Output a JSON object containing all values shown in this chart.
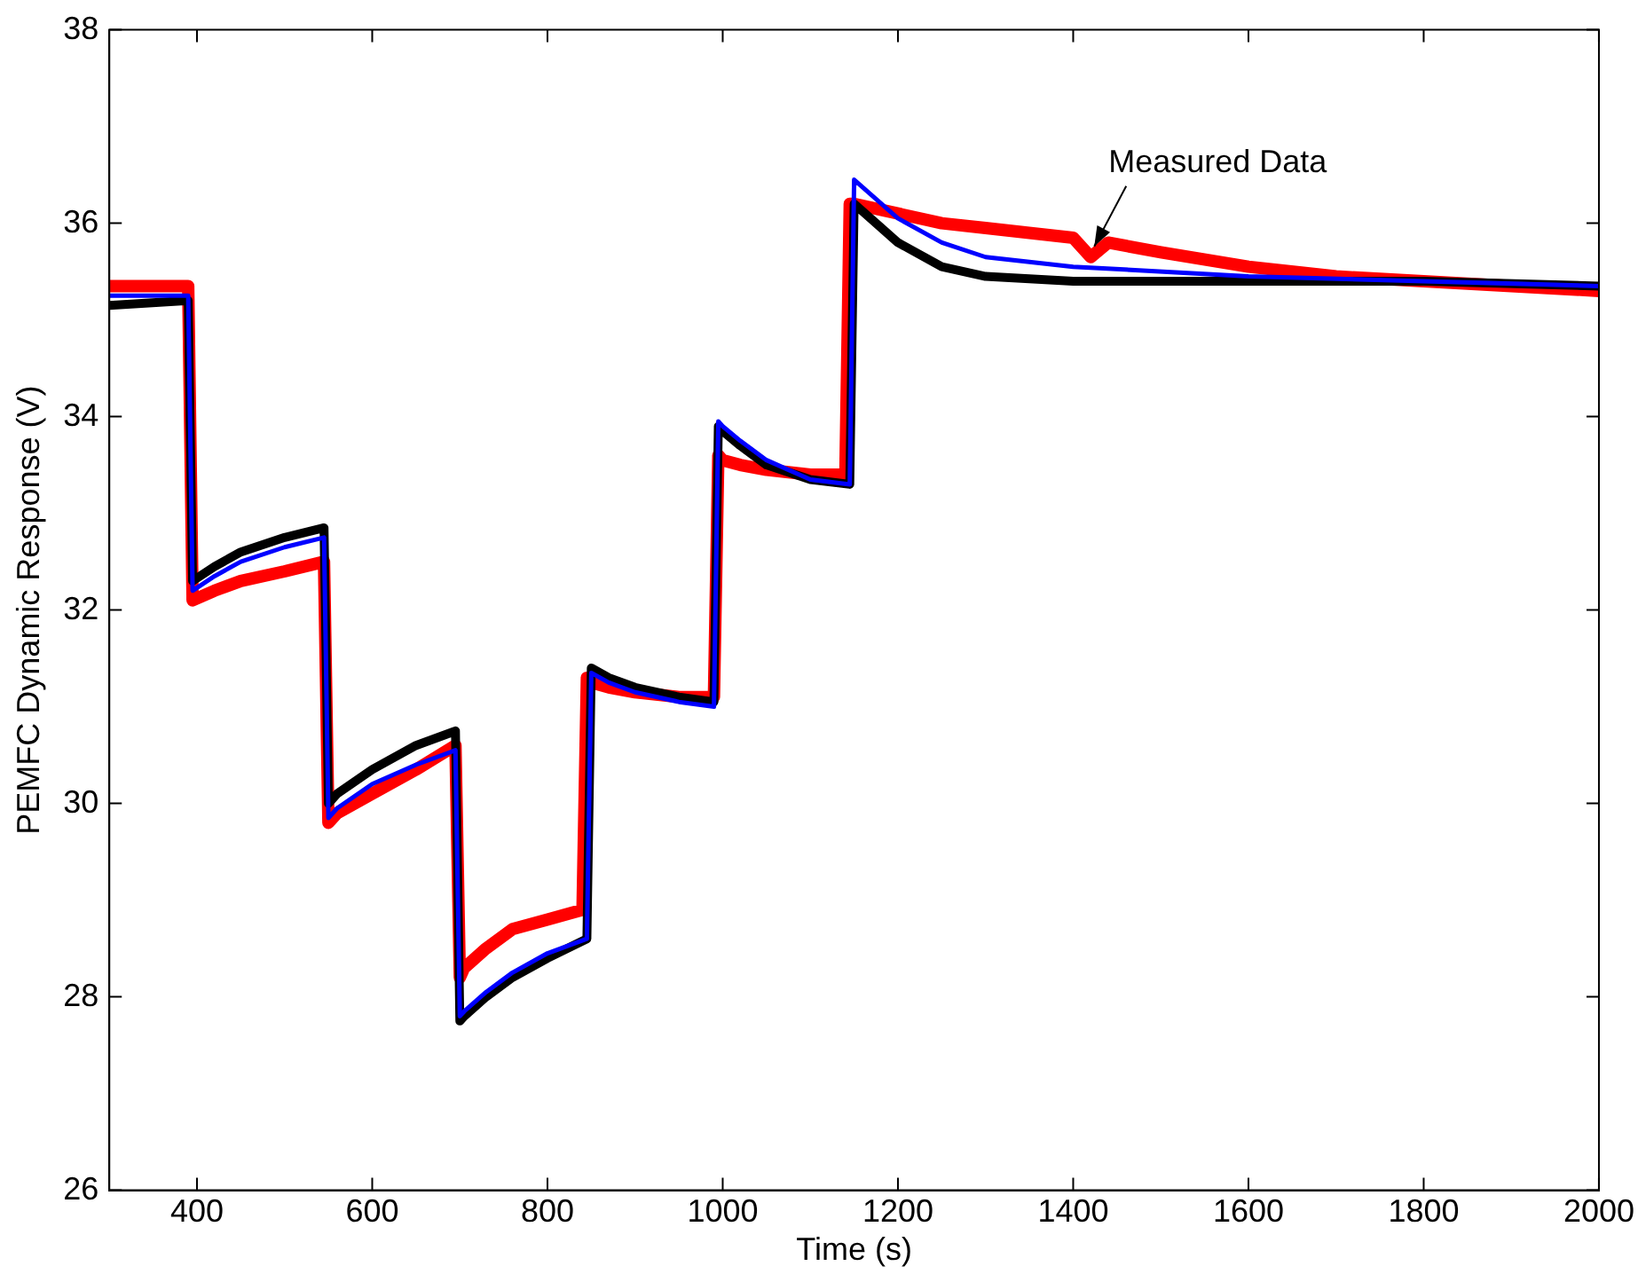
{
  "chart_data": {
    "type": "line",
    "xlabel": "Time (s)",
    "ylabel": "PEMFC Dynamic Response (V)",
    "xlim": [
      300,
      2000
    ],
    "xticks": [
      400,
      600,
      800,
      1000,
      1200,
      1400,
      1600,
      1800,
      2000
    ],
    "ylim": [
      26,
      38
    ],
    "yticks": [
      26,
      28,
      30,
      32,
      34,
      36,
      38
    ],
    "grid": false,
    "legend": false,
    "marker": "none",
    "line_style": "solid",
    "series": [
      {
        "name": "Measured Data",
        "color": "#ff0000",
        "x": [
          300,
          390,
          395,
          420,
          450,
          500,
          545,
          550,
          560,
          600,
          650,
          695,
          700,
          705,
          730,
          760,
          800,
          840,
          845,
          850,
          870,
          900,
          950,
          990,
          995,
          1000,
          1020,
          1050,
          1100,
          1140,
          1145,
          1150,
          1200,
          1250,
          1300,
          1400,
          1420,
          1440,
          1500,
          1600,
          1700,
          1800,
          1900,
          2000
        ],
        "values": [
          35.35,
          35.35,
          32.1,
          32.2,
          32.3,
          32.4,
          32.5,
          29.8,
          29.9,
          30.1,
          30.35,
          30.6,
          28.2,
          28.3,
          28.5,
          28.7,
          28.8,
          28.9,
          31.3,
          31.25,
          31.2,
          31.15,
          31.1,
          31.1,
          33.6,
          33.55,
          33.5,
          33.45,
          33.4,
          33.4,
          36.2,
          36.2,
          36.1,
          36.0,
          35.95,
          35.85,
          35.65,
          35.8,
          35.7,
          35.55,
          35.45,
          35.4,
          35.35,
          35.3
        ]
      },
      {
        "color": "#000000",
        "x": [
          300,
          390,
          395,
          420,
          450,
          500,
          545,
          550,
          560,
          600,
          650,
          695,
          700,
          705,
          730,
          760,
          800,
          845,
          850,
          870,
          900,
          950,
          990,
          995,
          1000,
          1020,
          1050,
          1100,
          1145,
          1150,
          1200,
          1250,
          1300,
          1400,
          1600,
          1800,
          2000
        ],
        "values": [
          35.15,
          35.2,
          32.3,
          32.45,
          32.6,
          32.75,
          32.85,
          30.0,
          30.1,
          30.35,
          30.6,
          30.75,
          27.75,
          27.8,
          28.0,
          28.2,
          28.4,
          28.6,
          31.4,
          31.3,
          31.2,
          31.1,
          31.05,
          33.9,
          33.85,
          33.7,
          33.5,
          33.35,
          33.3,
          36.2,
          35.8,
          35.55,
          35.45,
          35.4,
          35.4,
          35.4,
          35.35
        ]
      },
      {
        "color": "#0000ff",
        "x": [
          300,
          390,
          395,
          420,
          450,
          500,
          545,
          550,
          560,
          600,
          650,
          695,
          700,
          705,
          730,
          760,
          800,
          845,
          850,
          870,
          900,
          950,
          990,
          995,
          1000,
          1020,
          1050,
          1100,
          1145,
          1150,
          1200,
          1250,
          1300,
          1400,
          1600,
          1800,
          2000
        ],
        "values": [
          35.25,
          35.25,
          32.2,
          32.35,
          32.5,
          32.65,
          32.75,
          29.85,
          29.95,
          30.2,
          30.4,
          30.55,
          27.8,
          27.85,
          28.05,
          28.25,
          28.45,
          28.6,
          31.35,
          31.25,
          31.15,
          31.05,
          31.0,
          33.95,
          33.9,
          33.75,
          33.55,
          33.35,
          33.3,
          36.45,
          36.05,
          35.8,
          35.65,
          35.55,
          35.45,
          35.4,
          35.35
        ]
      }
    ]
  }
}
